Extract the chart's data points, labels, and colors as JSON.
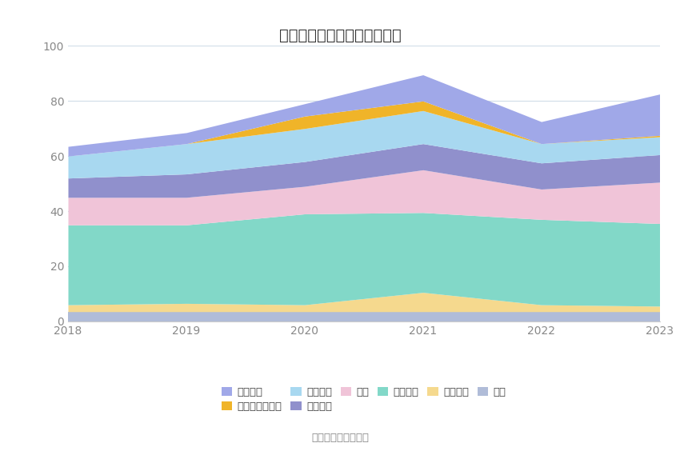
{
  "title": "历年主要资产堆积图（亿元）",
  "years": [
    2018,
    2019,
    2020,
    2021,
    2022,
    2023
  ],
  "series": [
    {
      "name": "其它",
      "color": "#b0bcd8",
      "values": [
        3.5,
        3.5,
        3.5,
        3.5,
        3.5,
        3.5
      ]
    },
    {
      "name": "在建工程",
      "color": "#f5d98e",
      "values": [
        2.5,
        3.0,
        2.5,
        7.0,
        2.5,
        2.0
      ]
    },
    {
      "name": "固定资产",
      "color": "#82d8c8",
      "values": [
        29.0,
        28.5,
        33.0,
        29.0,
        31.0,
        30.0
      ]
    },
    {
      "name": "存货",
      "color": "#f0c4d8",
      "values": [
        10.0,
        10.0,
        10.0,
        15.5,
        11.0,
        15.0
      ]
    },
    {
      "name": "应收账款",
      "color": "#9090cc",
      "values": [
        7.0,
        8.5,
        9.0,
        9.5,
        9.5,
        10.0
      ]
    },
    {
      "name": "应收票据",
      "color": "#a8d8f0",
      "values": [
        8.0,
        11.0,
        12.0,
        12.0,
        7.0,
        6.5
      ]
    },
    {
      "name": "交易性金融资产",
      "color": "#f0b429",
      "values": [
        0.0,
        0.0,
        4.5,
        3.5,
        0.0,
        0.5
      ]
    },
    {
      "name": "货币资金",
      "color": "#a0a8e8",
      "values": [
        3.5,
        4.0,
        4.5,
        9.5,
        8.0,
        15.0
      ]
    }
  ],
  "ylim": [
    0,
    100
  ],
  "yticks": [
    0,
    20,
    40,
    60,
    80,
    100
  ],
  "source_text": "数据来源：恒生聚源",
  "background_color": "#ffffff",
  "grid_color": "#d0dce8",
  "title_fontsize": 14,
  "tick_fontsize": 10,
  "legend_fontsize": 9.5
}
